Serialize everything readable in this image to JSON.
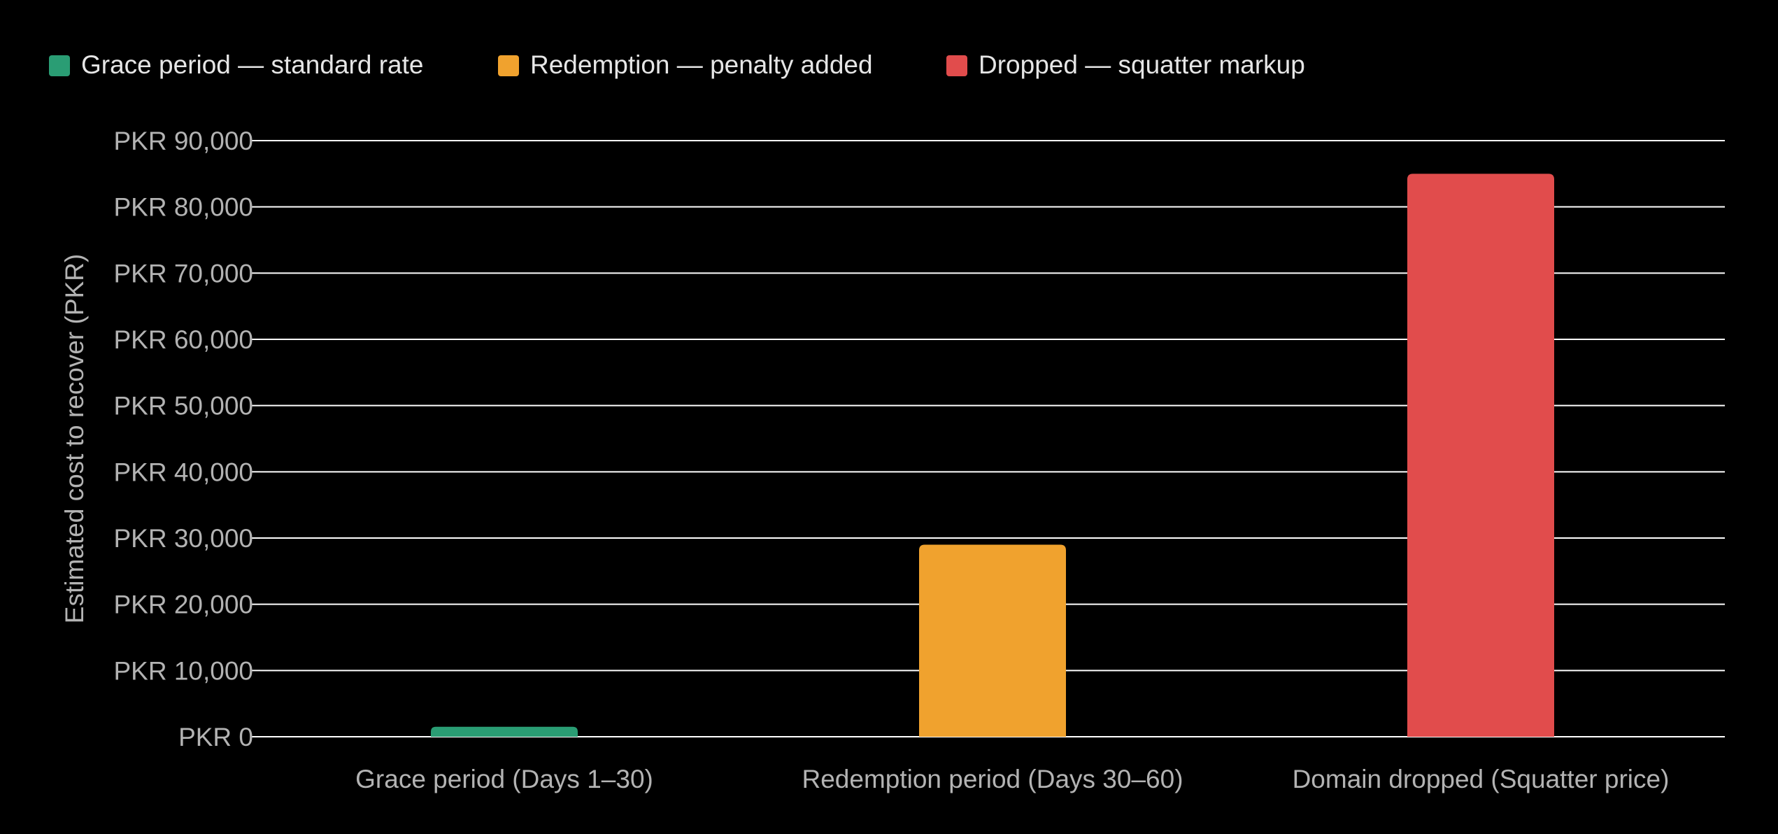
{
  "chart_data": {
    "type": "bar",
    "title": "",
    "xlabel": "",
    "ylabel": "Estimated cost to recover (PKR)",
    "ylim": [
      0,
      90000
    ],
    "yticks": [
      0,
      10000,
      20000,
      30000,
      40000,
      50000,
      60000,
      70000,
      80000,
      90000
    ],
    "ytick_labels": [
      "PKR 0",
      "PKR 10,000",
      "PKR 20,000",
      "PKR 30,000",
      "PKR 40,000",
      "PKR 50,000",
      "PKR 60,000",
      "PKR 70,000",
      "PKR 80,000",
      "PKR 90,000"
    ],
    "categories": [
      "Grace period (Days 1–30)",
      "Redemption period (Days 30–60)",
      "Domain dropped (Squatter price)"
    ],
    "values": [
      1500,
      29000,
      85000
    ],
    "colors": [
      "#2a9d74",
      "#f0a22e",
      "#e14c4c"
    ],
    "legend": {
      "position": "top-left",
      "entries": [
        {
          "label": "Grace period — standard rate",
          "color": "#2a9d74"
        },
        {
          "label": "Redemption — penalty added",
          "color": "#f0a22e"
        },
        {
          "label": "Dropped — squatter markup",
          "color": "#e14c4c"
        }
      ]
    },
    "grid": true,
    "background": "#000000",
    "grid_color": "#ffffff",
    "text_color": "#b3b3b3",
    "legend_text_color": "#e6e6e6"
  }
}
